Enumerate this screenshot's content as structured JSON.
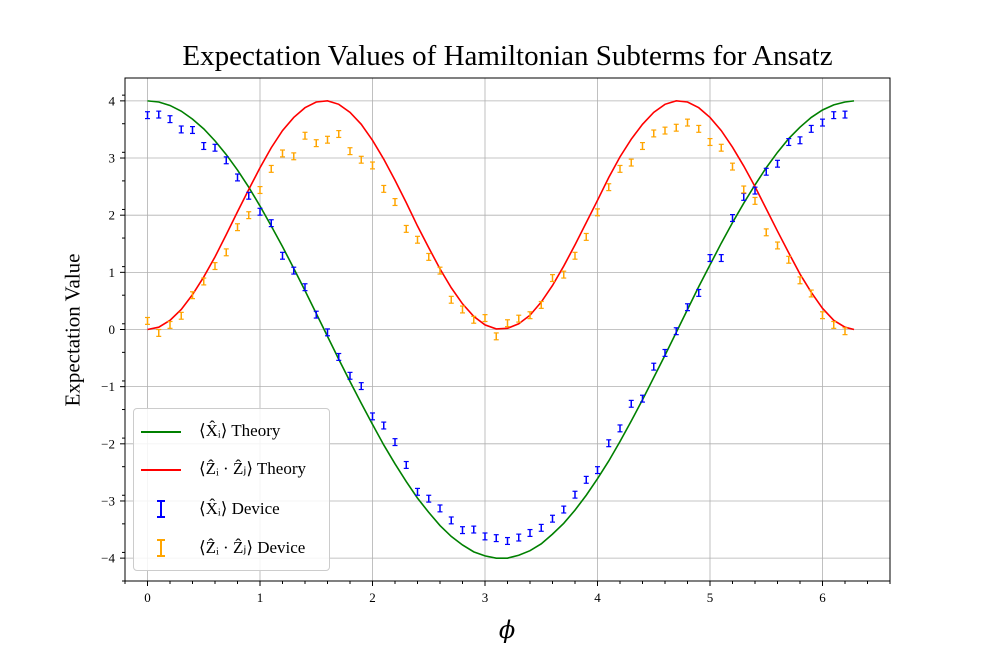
{
  "chart_data": {
    "type": "line",
    "title": "Expectation Values of Hamiltonian Subterms for Ansatz",
    "xlabel": "ϕ",
    "ylabel": "Expectation Value",
    "xlim": [
      -0.2,
      6.6
    ],
    "ylim": [
      -4.4,
      4.4
    ],
    "x_ticks": [
      "0",
      "1",
      "2",
      "3",
      "4",
      "5",
      "6"
    ],
    "y_ticks": [
      "4",
      "3",
      "2",
      "1",
      "0",
      "−1",
      "−2",
      "−3",
      "−4"
    ],
    "grid": true,
    "legend_position": "lower-left",
    "legend": [
      {
        "label": "⟨X̂ᵢ⟩ Theory",
        "kind": "line",
        "color": "#008000"
      },
      {
        "label": "⟨Ẑᵢ · Ẑⱼ⟩ Theory",
        "kind": "line",
        "color": "#ff0000"
      },
      {
        "label": "⟨X̂ᵢ⟩ Device",
        "kind": "errorbar",
        "color": "#0000ff"
      },
      {
        "label": "⟨Ẑᵢ · Ẑⱼ⟩ Device",
        "kind": "errorbar",
        "color": "#ffa500"
      }
    ],
    "series": [
      {
        "name": "⟨X̂ᵢ⟩ Theory",
        "kind": "line",
        "color": "#008000",
        "x": [
          0,
          0.1,
          0.2,
          0.3,
          0.4,
          0.5,
          0.6,
          0.7,
          0.8,
          0.9,
          1.0,
          1.1,
          1.2,
          1.3,
          1.4,
          1.5,
          1.6,
          1.7,
          1.8,
          1.9,
          2.0,
          2.1,
          2.2,
          2.3,
          2.4,
          2.5,
          2.6,
          2.7,
          2.8,
          2.9,
          3.0,
          3.1,
          3.2,
          3.3,
          3.4,
          3.5,
          3.6,
          3.7,
          3.8,
          3.9,
          4.0,
          4.1,
          4.2,
          4.3,
          4.4,
          4.5,
          4.6,
          4.7,
          4.8,
          4.9,
          5.0,
          5.1,
          5.2,
          5.3,
          5.4,
          5.5,
          5.6,
          5.7,
          5.8,
          5.9,
          6.0,
          6.1,
          6.2,
          6.28
        ],
        "y": [
          4.0,
          3.98,
          3.92,
          3.82,
          3.68,
          3.51,
          3.3,
          3.06,
          2.79,
          2.49,
          2.16,
          1.81,
          1.45,
          1.07,
          0.68,
          0.28,
          -0.12,
          -0.52,
          -0.91,
          -1.29,
          -1.66,
          -2.02,
          -2.35,
          -2.66,
          -2.95,
          -3.2,
          -3.43,
          -3.62,
          -3.77,
          -3.89,
          -3.96,
          -4.0,
          -4.0,
          -3.95,
          -3.87,
          -3.75,
          -3.58,
          -3.39,
          -3.16,
          -2.9,
          -2.61,
          -2.3,
          -1.96,
          -1.6,
          -1.23,
          -0.84,
          -0.45,
          -0.05,
          0.35,
          0.75,
          1.13,
          1.51,
          1.87,
          2.21,
          2.53,
          2.83,
          3.1,
          3.34,
          3.54,
          3.71,
          3.84,
          3.93,
          3.98,
          4.0
        ]
      },
      {
        "name": "⟨Ẑᵢ · Ẑⱼ⟩ Theory",
        "kind": "line",
        "color": "#ff0000",
        "x": [
          0,
          0.1,
          0.2,
          0.3,
          0.4,
          0.5,
          0.6,
          0.7,
          0.8,
          0.9,
          1.0,
          1.1,
          1.2,
          1.3,
          1.4,
          1.5,
          1.6,
          1.7,
          1.8,
          1.9,
          2.0,
          2.1,
          2.2,
          2.3,
          2.4,
          2.5,
          2.6,
          2.7,
          2.8,
          2.9,
          3.0,
          3.1,
          3.2,
          3.3,
          3.4,
          3.5,
          3.6,
          3.7,
          3.8,
          3.9,
          4.0,
          4.1,
          4.2,
          4.3,
          4.4,
          4.5,
          4.6,
          4.7,
          4.8,
          4.9,
          5.0,
          5.1,
          5.2,
          5.3,
          5.4,
          5.5,
          5.6,
          5.7,
          5.8,
          5.9,
          6.0,
          6.1,
          6.2,
          6.28
        ],
        "y": [
          0.0,
          0.04,
          0.16,
          0.35,
          0.61,
          0.92,
          1.27,
          1.66,
          2.06,
          2.45,
          2.83,
          3.18,
          3.48,
          3.71,
          3.88,
          3.98,
          4.0,
          3.94,
          3.8,
          3.59,
          3.31,
          2.98,
          2.61,
          2.22,
          1.81,
          1.43,
          1.06,
          0.73,
          0.45,
          0.23,
          0.08,
          0.01,
          0.02,
          0.1,
          0.25,
          0.48,
          0.77,
          1.11,
          1.48,
          1.87,
          2.26,
          2.66,
          3.02,
          3.33,
          3.59,
          3.8,
          3.94,
          4.0,
          3.98,
          3.88,
          3.71,
          3.48,
          3.19,
          2.86,
          2.5,
          2.11,
          1.72,
          1.34,
          0.97,
          0.65,
          0.37,
          0.16,
          0.04,
          0.0
        ]
      },
      {
        "name": "⟨X̂ᵢ⟩ Device",
        "kind": "errorbar",
        "color": "#0000ff",
        "x": [
          0,
          0.1,
          0.2,
          0.3,
          0.4,
          0.5,
          0.6,
          0.7,
          0.8,
          0.9,
          1.0,
          1.1,
          1.2,
          1.3,
          1.4,
          1.5,
          1.6,
          1.7,
          1.8,
          1.9,
          2.0,
          2.1,
          2.2,
          2.3,
          2.4,
          2.5,
          2.6,
          2.7,
          2.8,
          2.9,
          3.0,
          3.1,
          3.2,
          3.3,
          3.4,
          3.5,
          3.6,
          3.7,
          3.8,
          3.9,
          4.0,
          4.1,
          4.2,
          4.3,
          4.4,
          4.5,
          4.6,
          4.7,
          4.8,
          4.9,
          5.0,
          5.1,
          5.2,
          5.3,
          5.4,
          5.5,
          5.6,
          5.7,
          5.8,
          5.9,
          6.0,
          6.1,
          6.2
        ],
        "y": [
          3.75,
          3.76,
          3.68,
          3.5,
          3.49,
          3.21,
          3.18,
          2.96,
          2.66,
          2.34,
          2.06,
          1.86,
          1.29,
          1.03,
          0.74,
          0.26,
          -0.05,
          -0.48,
          -0.81,
          -0.99,
          -1.52,
          -1.68,
          -1.97,
          -2.37,
          -2.84,
          -2.96,
          -3.13,
          -3.34,
          -3.51,
          -3.5,
          -3.62,
          -3.65,
          -3.7,
          -3.64,
          -3.56,
          -3.47,
          -3.31,
          -3.15,
          -2.89,
          -2.63,
          -2.46,
          -1.99,
          -1.73,
          -1.3,
          -1.21,
          -0.65,
          -0.41,
          -0.03,
          0.39,
          0.64,
          1.25,
          1.25,
          1.95,
          2.32,
          2.43,
          2.76,
          2.9,
          3.28,
          3.31,
          3.51,
          3.62,
          3.75,
          3.76
        ],
        "err": 0.06
      },
      {
        "name": "⟨Ẑᵢ · Ẑⱼ⟩ Device",
        "kind": "errorbar",
        "color": "#ffa500",
        "x": [
          0,
          0.1,
          0.2,
          0.3,
          0.4,
          0.5,
          0.6,
          0.7,
          0.8,
          0.9,
          1.0,
          1.1,
          1.2,
          1.3,
          1.4,
          1.5,
          1.6,
          1.7,
          1.8,
          1.9,
          2.0,
          2.1,
          2.2,
          2.3,
          2.4,
          2.5,
          2.6,
          2.7,
          2.8,
          2.9,
          3.0,
          3.1,
          3.2,
          3.3,
          3.4,
          3.5,
          3.6,
          3.7,
          3.8,
          3.9,
          4.0,
          4.1,
          4.2,
          4.3,
          4.4,
          4.5,
          4.6,
          4.7,
          4.8,
          4.9,
          5.0,
          5.1,
          5.2,
          5.3,
          5.4,
          5.5,
          5.6,
          5.7,
          5.8,
          5.9,
          6.0,
          6.1,
          6.2
        ],
        "y": [
          0.15,
          -0.06,
          0.08,
          0.24,
          0.6,
          0.84,
          1.11,
          1.35,
          1.79,
          2.0,
          2.44,
          2.81,
          3.08,
          3.03,
          3.39,
          3.26,
          3.32,
          3.42,
          3.12,
          2.97,
          2.87,
          2.46,
          2.23,
          1.76,
          1.57,
          1.27,
          1.03,
          0.52,
          0.35,
          0.17,
          0.2,
          -0.12,
          0.11,
          0.19,
          0.25,
          0.43,
          0.9,
          0.96,
          1.29,
          1.62,
          2.05,
          2.49,
          2.81,
          2.92,
          3.21,
          3.43,
          3.48,
          3.53,
          3.62,
          3.51,
          3.28,
          3.18,
          2.85,
          2.45,
          2.25,
          1.7,
          1.47,
          1.22,
          0.86,
          0.63,
          0.25,
          0.08,
          -0.03
        ],
        "err": 0.06
      }
    ]
  }
}
